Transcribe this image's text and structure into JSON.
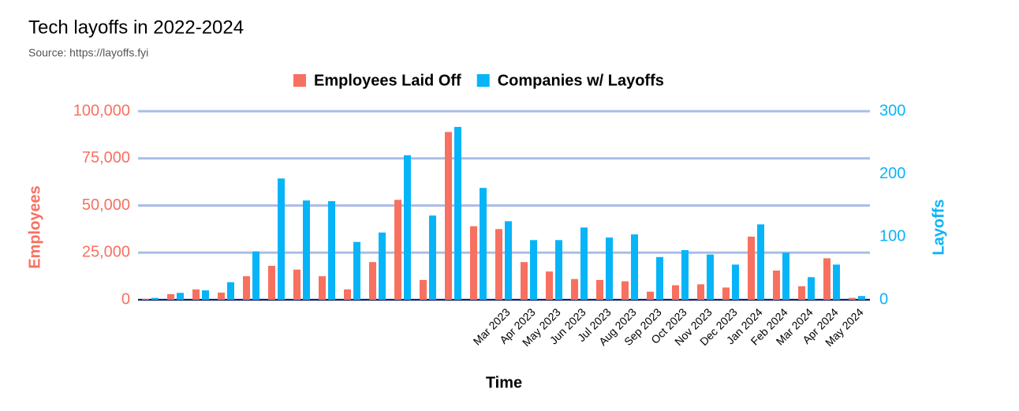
{
  "chart_data": {
    "type": "bar",
    "title": "Tech layoffs in 2022-2024",
    "subtitle": "Source: https://layoffs.fyi",
    "x_label": "Time",
    "y_label": "Employees",
    "y2_label": "Layoffs",
    "categories": [
      null,
      null,
      null,
      null,
      null,
      null,
      null,
      null,
      null,
      null,
      null,
      null,
      null,
      null,
      "Mar 2023",
      "Apr 2023",
      "May 2023",
      "Jun 2023",
      "Jul 2023",
      "Aug 2023",
      "Sep 2023",
      "Oct 2023",
      "Nov 2023",
      "Dec 2023",
      "Jan 2024",
      "Feb 2024",
      "Mar 2024",
      "Apr 2024",
      "May 2024"
    ],
    "series": [
      {
        "name": "Employees Laid Off",
        "color": "#f87060",
        "values": [
          500,
          3000,
          5500,
          3800,
          12500,
          18000,
          16000,
          12500,
          5500,
          20000,
          53000,
          10500,
          89000,
          39000,
          37500,
          20000,
          15000,
          11000,
          10500,
          9800,
          4300,
          7700,
          8200,
          6500,
          33500,
          15500,
          7200,
          22000,
          1000
        ]
      },
      {
        "name": "Companies w/ Layoffs",
        "color": "#08b4f8",
        "axis": "y2",
        "values": [
          3,
          11,
          15,
          28,
          77,
          193,
          158,
          157,
          92,
          107,
          230,
          134,
          275,
          178,
          125,
          95,
          95,
          115,
          99,
          104,
          68,
          79,
          72,
          56,
          120,
          75,
          36,
          56,
          6
        ]
      }
    ],
    "ylim": [
      0,
      100000
    ],
    "yticks": [
      0,
      {
        "value": 25000,
        "label": "25,000"
      },
      {
        "value": 50000,
        "label": "50,000"
      },
      {
        "value": 75000,
        "label": "75,000"
      },
      {
        "value": 100000,
        "label": "100,000"
      }
    ],
    "y2lim": [
      0,
      300
    ],
    "y2ticks": [
      0,
      100,
      200,
      300
    ],
    "grid": true,
    "legend": "top"
  }
}
